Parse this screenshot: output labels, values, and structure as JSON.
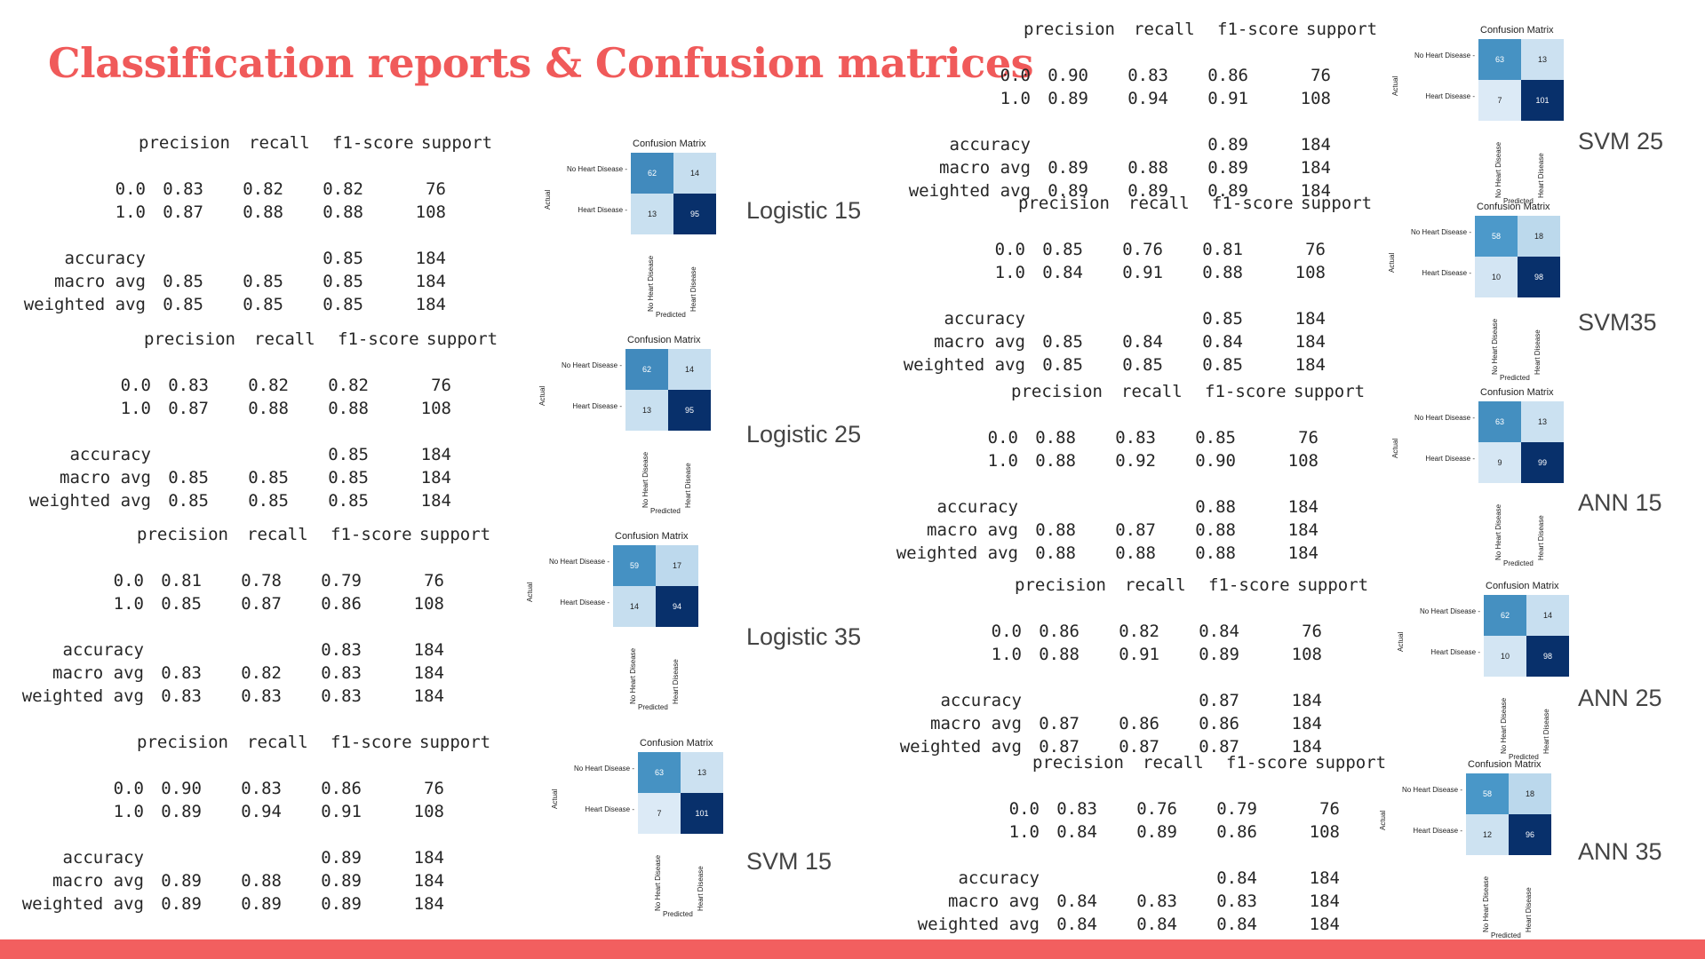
{
  "slide": {
    "title": "Classification reports & Confusion matrices",
    "accent_color": "#f25f5f"
  },
  "report_header": [
    "precision",
    "recall",
    "f1-score",
    "support"
  ],
  "cm_text": {
    "title": "Confusion Matrix",
    "row_labels": [
      "No Heart Disease",
      "Heart Disease"
    ],
    "col_labels": [
      "No Heart Disease",
      "Heart Disease"
    ],
    "y_axis": "Actual",
    "x_axis": "Predicted"
  },
  "models": [
    {
      "label": "Logistic 15",
      "rows": [
        [
          "0.0",
          "0.83",
          "0.82",
          "0.82",
          "76"
        ],
        [
          "1.0",
          "0.87",
          "0.88",
          "0.88",
          "108"
        ],
        [
          "accuracy",
          "",
          "",
          "0.85",
          "184"
        ],
        [
          "macro avg",
          "0.85",
          "0.85",
          "0.85",
          "184"
        ],
        [
          "weighted avg",
          "0.85",
          "0.85",
          "0.85",
          "184"
        ]
      ],
      "cm": [
        [
          "62",
          "14"
        ],
        [
          "13",
          "95"
        ]
      ]
    },
    {
      "label": "Logistic 25",
      "rows": [
        [
          "0.0",
          "0.83",
          "0.82",
          "0.82",
          "76"
        ],
        [
          "1.0",
          "0.87",
          "0.88",
          "0.88",
          "108"
        ],
        [
          "accuracy",
          "",
          "",
          "0.85",
          "184"
        ],
        [
          "macro avg",
          "0.85",
          "0.85",
          "0.85",
          "184"
        ],
        [
          "weighted avg",
          "0.85",
          "0.85",
          "0.85",
          "184"
        ]
      ],
      "cm": [
        [
          "62",
          "14"
        ],
        [
          "13",
          "95"
        ]
      ]
    },
    {
      "label": "Logistic 35",
      "rows": [
        [
          "0.0",
          "0.81",
          "0.78",
          "0.79",
          "76"
        ],
        [
          "1.0",
          "0.85",
          "0.87",
          "0.86",
          "108"
        ],
        [
          "accuracy",
          "",
          "",
          "0.83",
          "184"
        ],
        [
          "macro avg",
          "0.83",
          "0.82",
          "0.83",
          "184"
        ],
        [
          "weighted avg",
          "0.83",
          "0.83",
          "0.83",
          "184"
        ]
      ],
      "cm": [
        [
          "59",
          "17"
        ],
        [
          "14",
          "94"
        ]
      ]
    },
    {
      "label": "SVM 15",
      "rows": [
        [
          "0.0",
          "0.90",
          "0.83",
          "0.86",
          "76"
        ],
        [
          "1.0",
          "0.89",
          "0.94",
          "0.91",
          "108"
        ],
        [
          "accuracy",
          "",
          "",
          "0.89",
          "184"
        ],
        [
          "macro avg",
          "0.89",
          "0.88",
          "0.89",
          "184"
        ],
        [
          "weighted avg",
          "0.89",
          "0.89",
          "0.89",
          "184"
        ]
      ],
      "cm": [
        [
          "63",
          "13"
        ],
        [
          "7",
          "101"
        ]
      ]
    },
    {
      "label": "SVM 25",
      "rows": [
        [
          "0.0",
          "0.90",
          "0.83",
          "0.86",
          "76"
        ],
        [
          "1.0",
          "0.89",
          "0.94",
          "0.91",
          "108"
        ],
        [
          "accuracy",
          "",
          "",
          "0.89",
          "184"
        ],
        [
          "macro avg",
          "0.89",
          "0.88",
          "0.89",
          "184"
        ],
        [
          "weighted avg",
          "0.89",
          "0.89",
          "0.89",
          "184"
        ]
      ],
      "cm": [
        [
          "63",
          "13"
        ],
        [
          "7",
          "101"
        ]
      ]
    },
    {
      "label": "SVM35",
      "rows": [
        [
          "0.0",
          "0.85",
          "0.76",
          "0.81",
          "76"
        ],
        [
          "1.0",
          "0.84",
          "0.91",
          "0.88",
          "108"
        ],
        [
          "accuracy",
          "",
          "",
          "0.85",
          "184"
        ],
        [
          "macro avg",
          "0.85",
          "0.84",
          "0.84",
          "184"
        ],
        [
          "weighted avg",
          "0.85",
          "0.85",
          "0.85",
          "184"
        ]
      ],
      "cm": [
        [
          "58",
          "18"
        ],
        [
          "10",
          "98"
        ]
      ]
    },
    {
      "label": "ANN 15",
      "rows": [
        [
          "0.0",
          "0.88",
          "0.83",
          "0.85",
          "76"
        ],
        [
          "1.0",
          "0.88",
          "0.92",
          "0.90",
          "108"
        ],
        [
          "accuracy",
          "",
          "",
          "0.88",
          "184"
        ],
        [
          "macro avg",
          "0.88",
          "0.87",
          "0.88",
          "184"
        ],
        [
          "weighted avg",
          "0.88",
          "0.88",
          "0.88",
          "184"
        ]
      ],
      "cm": [
        [
          "63",
          "13"
        ],
        [
          "9",
          "99"
        ]
      ]
    },
    {
      "label": "ANN 25",
      "rows": [
        [
          "0.0",
          "0.86",
          "0.82",
          "0.84",
          "76"
        ],
        [
          "1.0",
          "0.88",
          "0.91",
          "0.89",
          "108"
        ],
        [
          "accuracy",
          "",
          "",
          "0.87",
          "184"
        ],
        [
          "macro avg",
          "0.87",
          "0.86",
          "0.86",
          "184"
        ],
        [
          "weighted avg",
          "0.87",
          "0.87",
          "0.87",
          "184"
        ]
      ],
      "cm": [
        [
          "62",
          "14"
        ],
        [
          "10",
          "98"
        ]
      ]
    },
    {
      "label": "ANN 35",
      "rows": [
        [
          "0.0",
          "0.83",
          "0.76",
          "0.79",
          "76"
        ],
        [
          "1.0",
          "0.84",
          "0.89",
          "0.86",
          "108"
        ],
        [
          "accuracy",
          "",
          "",
          "0.84",
          "184"
        ],
        [
          "macro avg",
          "0.84",
          "0.83",
          "0.83",
          "184"
        ],
        [
          "weighted avg",
          "0.84",
          "0.84",
          "0.84",
          "184"
        ]
      ],
      "cm": [
        [
          "58",
          "18"
        ],
        [
          "12",
          "96"
        ]
      ]
    }
  ]
}
